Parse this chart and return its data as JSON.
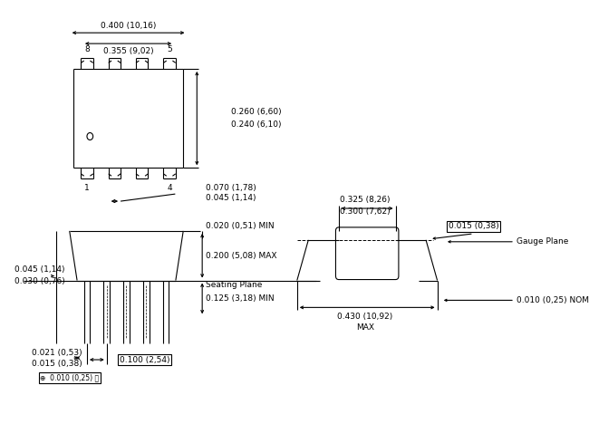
{
  "bg_color": "#ffffff",
  "line_color": "#000000",
  "text_color": "#000000",
  "fs": 6.5,
  "fs_small": 5.5,
  "lw": 0.8,
  "annotations": {
    "top_width1": "0.400 (10,16)",
    "top_width2": "0.355 (9,02)",
    "top_height1": "0.260 (6,60)",
    "top_height2": "0.240 (6,10)",
    "top_pin_width1": "0.070 (1,78)",
    "top_pin_width2": "0.045 (1,14)",
    "side_width1": "0.045 (1,14)",
    "side_width2": "0.030 (0,76)",
    "side_h_min": "0.020 (0,51) MIN",
    "side_h_max": "0.200 (5,08) MAX",
    "side_h_125": "0.125 (3,18) MIN",
    "side_pitch": "0.100 (2,54)",
    "side_pin1": "0.021 (0,53)",
    "side_pin2": "0.015 (0,38)",
    "side_gd": "⊕  0.010 (0,25) Ⓜ",
    "right_width1": "0.325 (8,26)",
    "right_width2": "0.300 (7,62)",
    "right_gauge": "0.015 (0,38)",
    "right_gauge_label": "Gauge Plane",
    "right_nom": "0.010 (0,25) NOM",
    "right_max_w": "0.430 (10,92)",
    "right_max_label": "MAX",
    "seating_plane": "Seating Plane"
  }
}
